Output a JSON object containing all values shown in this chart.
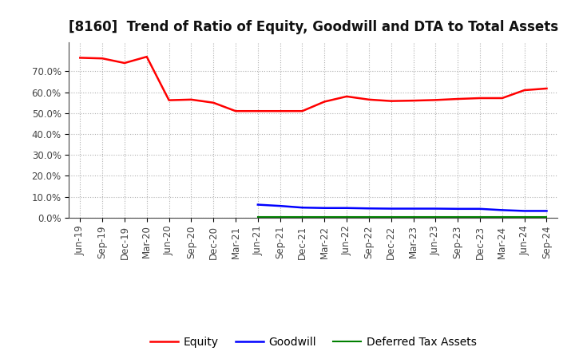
{
  "title": "[8160]  Trend of Ratio of Equity, Goodwill and DTA to Total Assets",
  "x_labels": [
    "Jun-19",
    "Sep-19",
    "Dec-19",
    "Mar-20",
    "Jun-20",
    "Sep-20",
    "Dec-20",
    "Mar-21",
    "Jun-21",
    "Sep-21",
    "Dec-21",
    "Mar-22",
    "Jun-22",
    "Sep-22",
    "Dec-22",
    "Mar-23",
    "Jun-23",
    "Sep-23",
    "Dec-23",
    "Mar-24",
    "Jun-24",
    "Sep-24"
  ],
  "equity": [
    0.765,
    0.762,
    0.74,
    0.77,
    0.562,
    0.565,
    0.55,
    0.51,
    0.51,
    0.51,
    0.51,
    0.555,
    0.58,
    0.565,
    0.558,
    0.56,
    0.563,
    0.568,
    0.572,
    0.572,
    0.61,
    0.618
  ],
  "goodwill": [
    null,
    null,
    null,
    null,
    null,
    null,
    null,
    null,
    0.062,
    0.056,
    0.048,
    0.046,
    0.046,
    0.044,
    0.043,
    0.043,
    0.043,
    0.042,
    0.042,
    0.036,
    0.032,
    0.032
  ],
  "dta": [
    null,
    null,
    null,
    null,
    null,
    null,
    null,
    null,
    0.004,
    0.004,
    0.004,
    0.004,
    0.004,
    0.004,
    0.004,
    0.004,
    0.004,
    0.004,
    0.004,
    0.004,
    0.004,
    0.004
  ],
  "equity_color": "#ff0000",
  "goodwill_color": "#0000ff",
  "dta_color": "#008000",
  "background_color": "#ffffff",
  "grid_color": "#b0b0b0",
  "ylim": [
    0.0,
    0.84
  ],
  "yticks": [
    0.0,
    0.1,
    0.2,
    0.3,
    0.4,
    0.5,
    0.6,
    0.7
  ],
  "legend_labels": [
    "Equity",
    "Goodwill",
    "Deferred Tax Assets"
  ],
  "title_fontsize": 12,
  "tick_fontsize": 8.5
}
